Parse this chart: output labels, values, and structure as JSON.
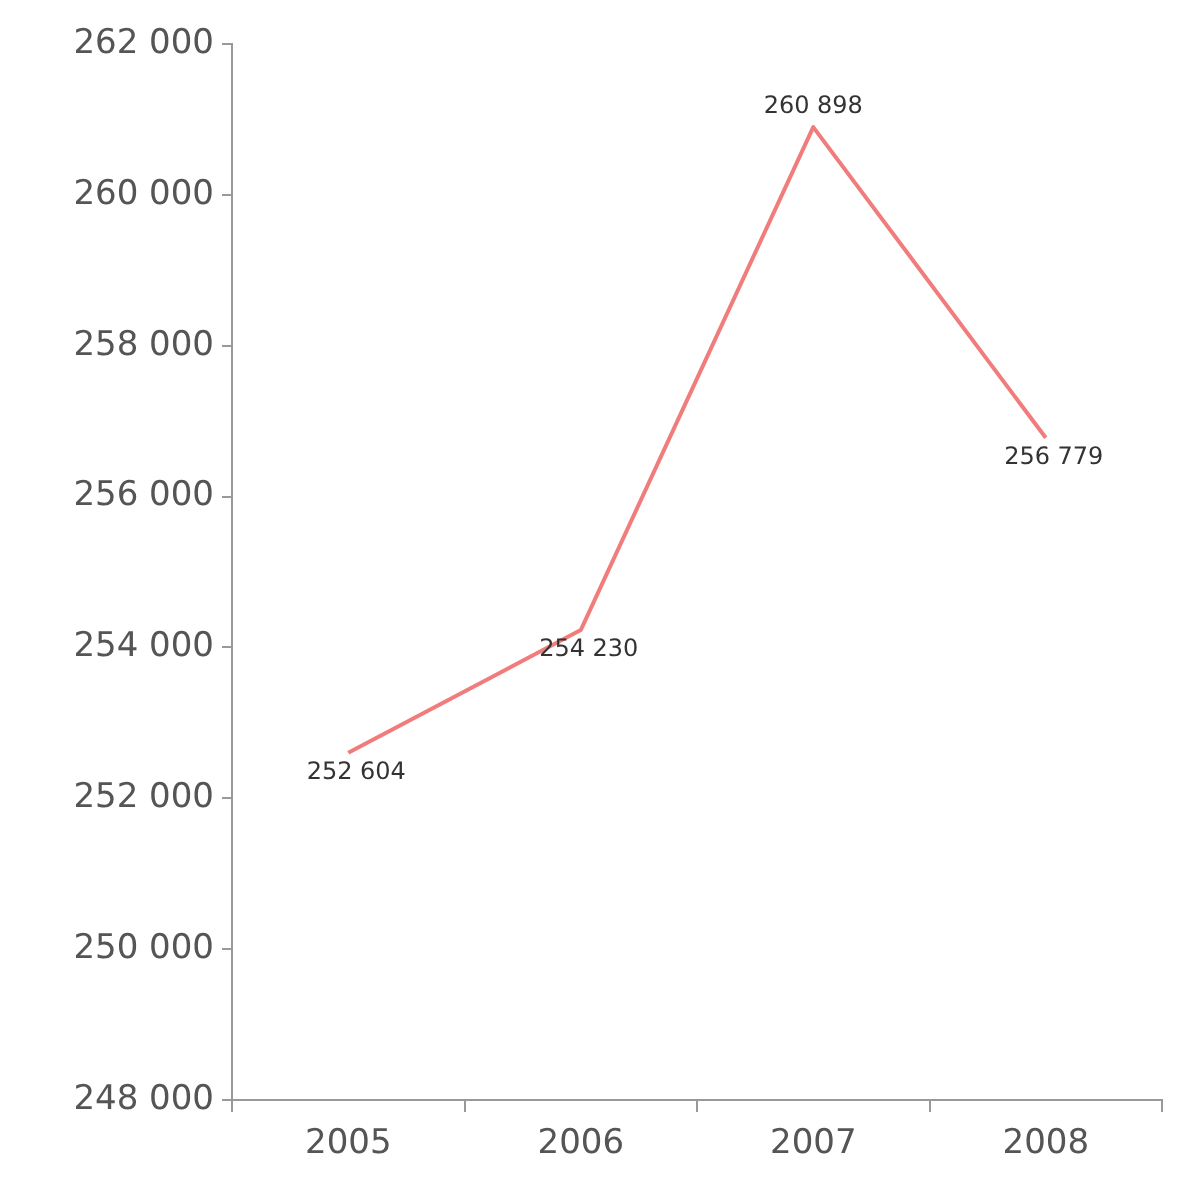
{
  "chart_data": {
    "type": "line",
    "categories": [
      "2005",
      "2006",
      "2007",
      "2008"
    ],
    "series": [
      {
        "color": "#f07c7c",
        "values": [
          252604,
          254230,
          260898,
          256779
        ],
        "value_labels": [
          "252 604",
          "254 230",
          "260 898",
          "256 779"
        ]
      }
    ],
    "ylim": [
      248000,
      262000
    ],
    "yticks": [
      {
        "value": 248000,
        "label": "248 000"
      },
      {
        "value": 250000,
        "label": "250 000"
      },
      {
        "value": 252000,
        "label": "252 000"
      },
      {
        "value": 254000,
        "label": "254 000"
      },
      {
        "value": 256000,
        "label": "256 000"
      },
      {
        "value": 258000,
        "label": "258 000"
      },
      {
        "value": 260000,
        "label": "260 000"
      },
      {
        "value": 262000,
        "label": "262 000"
      }
    ],
    "marker": "none",
    "legend": false
  }
}
